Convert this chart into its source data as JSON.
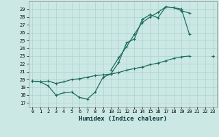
{
  "xlabel": "Humidex (Indice chaleur)",
  "ylabel": "",
  "xlim": [
    -0.5,
    23.5
  ],
  "ylim": [
    16.5,
    30.0
  ],
  "yticks": [
    17,
    18,
    19,
    20,
    21,
    22,
    23,
    24,
    25,
    26,
    27,
    28,
    29
  ],
  "xticks": [
    0,
    1,
    2,
    3,
    4,
    5,
    6,
    7,
    8,
    9,
    10,
    11,
    12,
    13,
    14,
    15,
    16,
    17,
    18,
    19,
    20,
    21,
    22,
    23
  ],
  "bg_color": "#cce8e4",
  "grid_color": "#aad4cc",
  "line_color": "#1a6b5a",
  "line1_y": [
    19.8,
    19.7,
    19.2,
    18.0,
    18.3,
    18.4,
    17.7,
    17.5,
    18.4,
    20.3,
    20.7,
    22.2,
    24.7,
    25.2,
    27.7,
    28.3,
    27.9,
    29.3,
    29.2,
    29.0,
    25.8,
    null,
    null,
    null
  ],
  "line2_y": [
    19.8,
    null,
    null,
    null,
    null,
    null,
    null,
    null,
    null,
    null,
    21.2,
    22.8,
    24.2,
    25.8,
    27.3,
    28.0,
    28.6,
    29.3,
    29.2,
    28.8,
    28.5,
    null,
    null,
    23.0
  ],
  "line3_y": [
    19.8,
    19.7,
    19.8,
    19.5,
    19.7,
    20.0,
    20.1,
    20.3,
    20.5,
    20.6,
    20.7,
    20.9,
    21.2,
    21.4,
    21.6,
    21.9,
    22.1,
    22.4,
    22.7,
    22.9,
    23.0,
    null,
    null,
    23.0
  ]
}
